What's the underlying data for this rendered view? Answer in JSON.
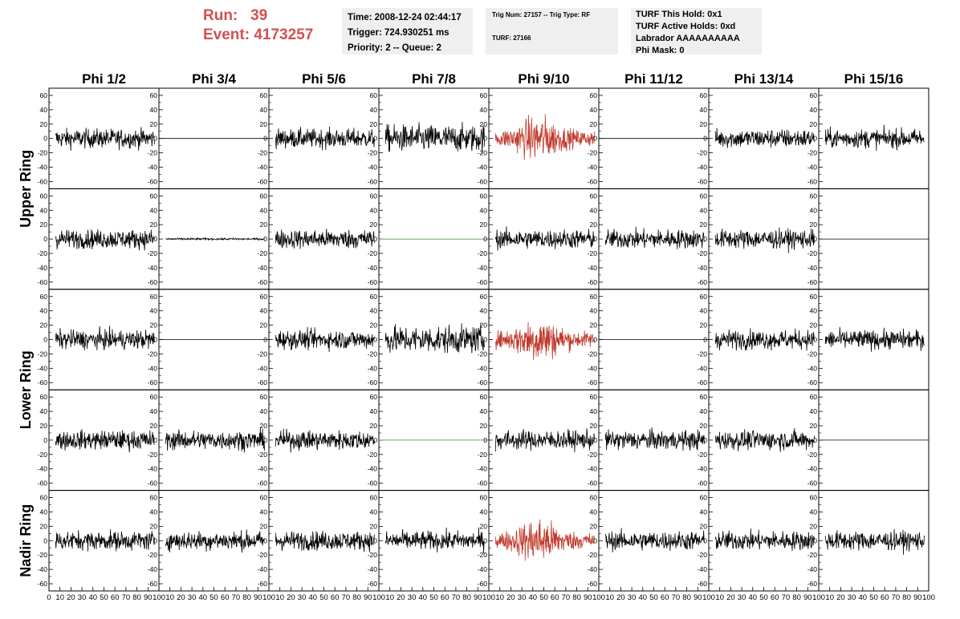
{
  "run_label": "Run:",
  "run_value": "39",
  "event_label": "Event:",
  "event_value": "4173257",
  "time_box": {
    "time": "Time: 2008-12-24 02:44:17",
    "trigger": "Trigger: 724.930251 ms",
    "priority": "Priority: 2 -- Queue: 2"
  },
  "trig_box": {
    "trig": "Trig Num: 27157 -- Trig Type: RF",
    "turf": "TURF: 27166"
  },
  "turf_box": {
    "this_hold": "TURF This Hold: 0x1",
    "active_holds": "TURF Active Holds: 0xd",
    "labrador": "Labrador AAAAAAAAAA",
    "phi_mask": "Phi Mask: 0"
  },
  "colors": {
    "run_text": "#d35050",
    "trace_default": "#000000",
    "trace_triggered": "#c0392b",
    "trace_green": "#2e8b2e",
    "box_bg": "#efefef"
  },
  "chart_data": {
    "type": "line",
    "column_headers": [
      "Phi 1/2",
      "Phi 3/4",
      "Phi 5/6",
      "Phi 7/8",
      "Phi 9/10",
      "Phi 11/12",
      "Phi 13/14",
      "Phi 15/16"
    ],
    "ring_labels": [
      {
        "name": "Upper Ring",
        "rows": [
          0,
          1
        ]
      },
      {
        "name": "Lower Ring",
        "rows": [
          2,
          3
        ]
      },
      {
        "name": "Nadir Ring",
        "rows": [
          4
        ]
      }
    ],
    "xlim": [
      0,
      100
    ],
    "ylim": [
      -70,
      70
    ],
    "x_ticks": [
      0,
      10,
      20,
      30,
      40,
      50,
      60,
      70,
      80,
      90,
      100
    ],
    "y_ticks": [
      -60,
      -40,
      -20,
      0,
      20,
      40,
      60
    ],
    "panels": [
      [
        "noise",
        "flat",
        "noise",
        "strong",
        "burst",
        "flat",
        "noise",
        "noise"
      ],
      [
        "noise",
        "low",
        "noise",
        "flat-green",
        "noise",
        "noise",
        "noise",
        "flat"
      ],
      [
        "noise",
        "flat",
        "noise",
        "strong",
        "burst",
        "flat",
        "noise",
        "noise"
      ],
      [
        "noise",
        "noise",
        "noise",
        "flat-green",
        "noise",
        "noise",
        "noise",
        "flat"
      ],
      [
        "noise",
        "noise",
        "noise",
        "noise",
        "burst",
        "noise",
        "noise",
        "noise"
      ]
    ]
  }
}
